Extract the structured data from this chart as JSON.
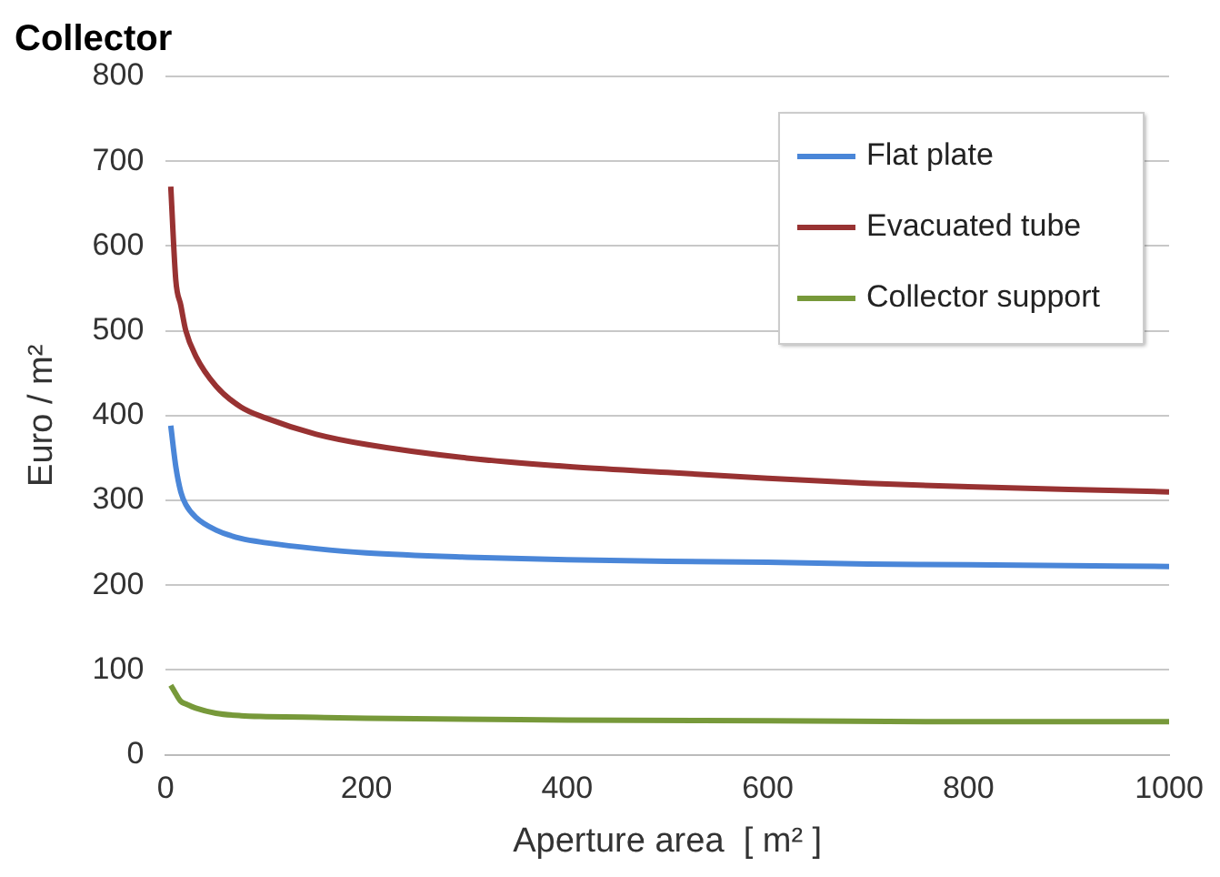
{
  "chart_data": {
    "type": "line",
    "title": "Collector",
    "xlabel": "Aperture area  [ m² ]",
    "ylabel": "Euro / m²",
    "xlim": [
      0,
      1000
    ],
    "xticks": [
      0,
      200,
      400,
      600,
      800,
      1000
    ],
    "ylim": [
      0,
      800
    ],
    "yticks": [
      0,
      100,
      200,
      300,
      400,
      500,
      600,
      700,
      800
    ],
    "grid": "y",
    "legend": "top right",
    "marker": "none",
    "line_style": "solid",
    "series": [
      {
        "name": "Flat plate",
        "color": "#4a86d8",
        "x": [
          5,
          10,
          15,
          20,
          30,
          50,
          75,
          100,
          150,
          200,
          300,
          400,
          500,
          600,
          700,
          800,
          900,
          1000
        ],
        "values": [
          388,
          340,
          310,
          295,
          280,
          265,
          255,
          250,
          243,
          238,
          233,
          230,
          228,
          227,
          225,
          224,
          223,
          222
        ]
      },
      {
        "name": "Evacuated tube",
        "color": "#983232",
        "x": [
          5,
          10,
          15,
          20,
          30,
          50,
          75,
          100,
          150,
          200,
          300,
          400,
          500,
          600,
          700,
          800,
          900,
          1000
        ],
        "values": [
          670,
          560,
          530,
          500,
          470,
          435,
          410,
          397,
          378,
          366,
          350,
          340,
          333,
          326,
          320,
          316,
          313,
          310
        ]
      },
      {
        "name": "Collector support",
        "color": "#77993a",
        "x": [
          5,
          10,
          15,
          20,
          30,
          50,
          75,
          100,
          150,
          200,
          400,
          600,
          800,
          1000
        ],
        "values": [
          82,
          72,
          63,
          60,
          55,
          49,
          46,
          45,
          44,
          43,
          41,
          40,
          39,
          39
        ]
      }
    ]
  }
}
